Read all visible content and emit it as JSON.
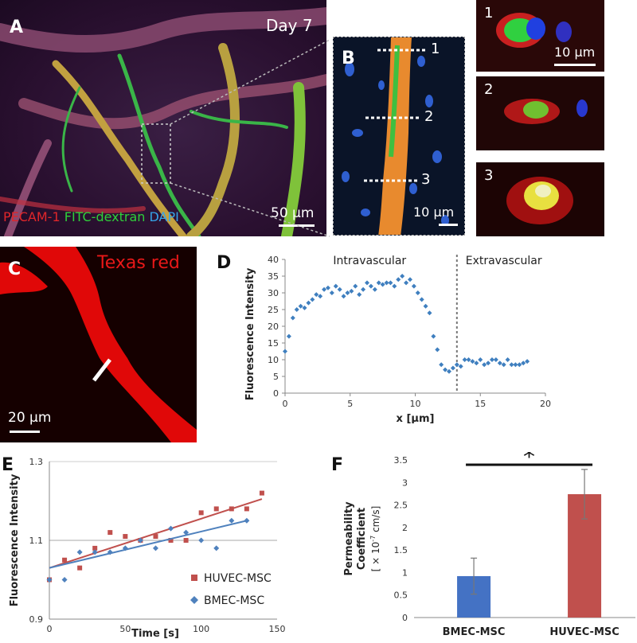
{
  "panel_labels": {
    "a": "A",
    "b": "B",
    "c": "C",
    "d": "D",
    "e": "E",
    "f": "F"
  },
  "panel_a": {
    "day": "Day 7",
    "stain_pecam": "PECAM-1",
    "stain_fitc": "FITC-dextran",
    "stain_dapi": "DAPI",
    "scale": "50 μm",
    "colors": {
      "pecam": "#e0262a",
      "fitc": "#2fcf3a",
      "dapi": "#35a4e8"
    }
  },
  "panel_b": {
    "lines": [
      "1",
      "2",
      "3"
    ],
    "scale": "10 μm"
  },
  "insets": {
    "labels": [
      "1",
      "2",
      "3"
    ],
    "scale": "10 μm"
  },
  "panel_c": {
    "dye": "Texas red",
    "scale": "20 μm"
  },
  "chart_data": [
    {
      "id": "D",
      "type": "scatter",
      "xlabel": "x [μm]",
      "ylabel": "Fluorescence Intensity",
      "xlim": [
        0,
        20
      ],
      "ylim": [
        0,
        40
      ],
      "xticks": [
        0,
        5,
        10,
        15,
        20
      ],
      "yticks": [
        0,
        5,
        10,
        15,
        20,
        25,
        30,
        35,
        40
      ],
      "annotations": [
        "Intravascular",
        "Extravascular"
      ],
      "boundary_x": 13.2,
      "marker_color": "#3f7fbf",
      "x": [
        0,
        0.3,
        0.6,
        0.9,
        1.2,
        1.5,
        1.8,
        2.1,
        2.4,
        2.7,
        3.0,
        3.3,
        3.6,
        3.9,
        4.2,
        4.5,
        4.8,
        5.1,
        5.4,
        5.7,
        6.0,
        6.3,
        6.6,
        6.9,
        7.2,
        7.5,
        7.8,
        8.1,
        8.4,
        8.7,
        9.0,
        9.3,
        9.6,
        9.9,
        10.2,
        10.5,
        10.8,
        11.1,
        11.4,
        11.7,
        12.0,
        12.3,
        12.6,
        12.9,
        13.2,
        13.5,
        13.8,
        14.1,
        14.4,
        14.7,
        15.0,
        15.3,
        15.6,
        15.9,
        16.2,
        16.5,
        16.8,
        17.1,
        17.4,
        17.7,
        18.0,
        18.3,
        18.6
      ],
      "y": [
        12.5,
        17,
        22.5,
        25,
        26,
        25.5,
        27,
        28,
        29.5,
        29,
        31,
        31.5,
        30,
        32,
        31,
        29,
        30,
        30.5,
        32,
        29.5,
        31,
        33,
        32,
        31,
        33,
        32.5,
        33,
        33,
        32,
        34,
        35,
        33,
        34,
        32,
        30,
        28,
        26,
        24,
        17,
        13,
        8.5,
        7,
        6.5,
        7.5,
        8.5,
        8,
        10,
        10,
        9.5,
        9,
        10,
        8.5,
        9,
        10,
        10,
        9,
        8.5,
        10,
        8.5,
        8.5,
        8.5,
        9,
        9.5
      ]
    },
    {
      "id": "E",
      "type": "scatter",
      "xlabel": "Time [s]",
      "ylabel": "Fluorescence Intensity",
      "xlim": [
        0,
        150
      ],
      "ylim": [
        0.9,
        1.3
      ],
      "xticks": [
        0,
        50,
        100,
        150
      ],
      "yticks": [
        0.9,
        1.1,
        1.3
      ],
      "series": [
        {
          "name": "HUVEC-MSC",
          "color": "#c0504d",
          "marker": "square",
          "x": [
            0,
            10,
            20,
            30,
            40,
            50,
            60,
            70,
            80,
            90,
            100,
            110,
            120,
            130,
            140
          ],
          "y": [
            1.0,
            1.05,
            1.03,
            1.08,
            1.12,
            1.11,
            1.1,
            1.11,
            1.1,
            1.1,
            1.17,
            1.18,
            1.18,
            1.18,
            1.22
          ],
          "fit": [
            1.03,
            1.205
          ]
        },
        {
          "name": "BMEC-MSC",
          "color": "#4f81bd",
          "marker": "diamond",
          "x": [
            0,
            10,
            20,
            30,
            40,
            50,
            60,
            70,
            80,
            90,
            100,
            110,
            120,
            130
          ],
          "y": [
            1.0,
            1.0,
            1.07,
            1.07,
            1.07,
            1.08,
            1.1,
            1.08,
            1.13,
            1.12,
            1.1,
            1.08,
            1.15,
            1.15
          ],
          "fit": [
            1.03,
            1.15
          ]
        }
      ]
    },
    {
      "id": "F",
      "type": "bar",
      "categories": [
        "BMEC-MSC",
        "HUVEC-MSC"
      ],
      "values": [
        0.92,
        2.74
      ],
      "errors": [
        0.4,
        0.55
      ],
      "colors": [
        "#4472c4",
        "#c0504d"
      ],
      "ylabel_line1": "Permeability",
      "ylabel_line2": "Coefficient",
      "ylabel_line3": "[ × 10",
      "ylabel_exp": "-7",
      "ylabel_line3_end": " cm/s]",
      "ylim": [
        0,
        3.5
      ],
      "yticks": [
        0,
        0.5,
        1,
        1.5,
        2,
        2.5,
        3,
        3.5
      ],
      "significance": "*"
    }
  ]
}
